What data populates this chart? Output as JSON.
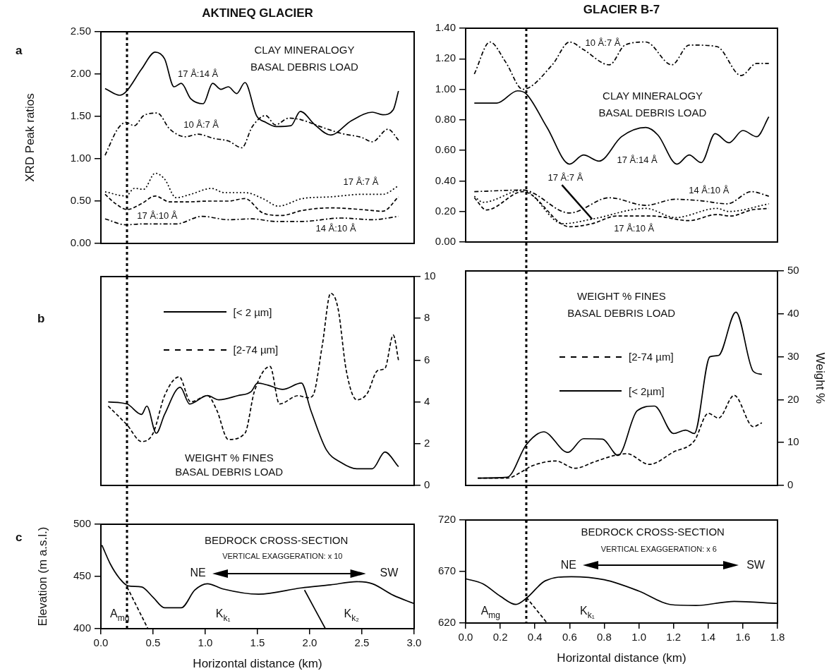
{
  "chart_data": [
    {
      "type": "line",
      "title": "AKTINEQ GLACIER",
      "subtitle": "a",
      "ylabel": "XRD Peak ratios",
      "xlim": [
        0,
        3
      ],
      "ylim": [
        0,
        2.5
      ],
      "yticks": [
        {
          "value": 0,
          "label": "0.00"
        },
        {
          "value": 0.5,
          "label": "0.50"
        },
        {
          "value": 1,
          "label": "1.00"
        },
        {
          "value": 1.5,
          "label": "1.50"
        },
        {
          "value": 2,
          "label": "2.00"
        },
        {
          "value": 2.5,
          "label": "2.50"
        }
      ],
      "tick_labels": "y",
      "ref_lines": [
        {
          "axis": "x",
          "value": 0.25,
          "line_style": "dotted"
        }
      ],
      "annotations": [
        "CLAY MINERALOGY",
        "BASAL DEBRIS LOAD"
      ],
      "series": [
        {
          "name": "17 Å:14 Å",
          "color": "#000000",
          "line_style": "solid",
          "x": [
            0.04,
            0.18,
            0.24,
            0.39,
            0.52,
            0.61,
            0.7,
            0.77,
            0.86,
            0.98,
            1.07,
            1.15,
            1.22,
            1.3,
            1.38,
            1.49,
            1.58,
            1.68,
            1.82,
            1.91,
            2.05,
            2.2,
            2.4,
            2.6,
            2.7,
            2.8,
            2.85
          ],
          "values": [
            1.83,
            1.75,
            1.79,
            2.06,
            2.26,
            2.18,
            1.85,
            1.89,
            1.71,
            1.65,
            1.89,
            1.82,
            1.85,
            1.77,
            1.9,
            1.51,
            1.43,
            1.38,
            1.39,
            1.56,
            1.4,
            1.28,
            1.45,
            1.55,
            1.52,
            1.58,
            1.8
          ]
        },
        {
          "name": "10 Å:7 Å",
          "color": "#000000",
          "line_style": "dashdot",
          "x": [
            0.04,
            0.16,
            0.24,
            0.32,
            0.41,
            0.54,
            0.66,
            0.81,
            0.93,
            1.08,
            1.22,
            1.35,
            1.45,
            1.58,
            1.67,
            1.8,
            1.92,
            2.1,
            2.3,
            2.5,
            2.6,
            2.75,
            2.85
          ],
          "values": [
            1.04,
            1.35,
            1.43,
            1.39,
            1.51,
            1.54,
            1.35,
            1.26,
            1.29,
            1.24,
            1.21,
            1.13,
            1.38,
            1.51,
            1.4,
            1.48,
            1.46,
            1.38,
            1.3,
            1.25,
            1.2,
            1.35,
            1.22
          ]
        },
        {
          "name": "17 Å:7 Å",
          "color": "#000000",
          "line_style": "dotted",
          "x": [
            0.04,
            0.24,
            0.32,
            0.41,
            0.52,
            0.61,
            0.72,
            0.86,
            1.06,
            1.18,
            1.38,
            1.55,
            1.7,
            1.93,
            2.2,
            2.5,
            2.7,
            2.85
          ],
          "values": [
            0.61,
            0.56,
            0.65,
            0.64,
            0.83,
            0.76,
            0.54,
            0.58,
            0.65,
            0.6,
            0.6,
            0.53,
            0.44,
            0.53,
            0.55,
            0.58,
            0.58,
            0.68
          ]
        },
        {
          "name": "17 Å:10 Å",
          "color": "#000000",
          "line_style": "dashed",
          "x": [
            0.04,
            0.14,
            0.25,
            0.39,
            0.52,
            0.66,
            0.81,
            1.03,
            1.22,
            1.38,
            1.55,
            1.73,
            1.93,
            2.2,
            2.5,
            2.7,
            2.85
          ],
          "values": [
            0.58,
            0.47,
            0.4,
            0.47,
            0.56,
            0.49,
            0.49,
            0.5,
            0.5,
            0.53,
            0.36,
            0.33,
            0.39,
            0.42,
            0.4,
            0.38,
            0.55
          ]
        },
        {
          "name": "14 Å:10 Å",
          "color": "#000000",
          "line_style": "dashdot",
          "x": [
            0.04,
            0.24,
            0.39,
            0.72,
            0.97,
            1.22,
            1.45,
            1.67,
            1.93,
            2.3,
            2.6,
            2.85
          ],
          "values": [
            0.29,
            0.22,
            0.23,
            0.23,
            0.32,
            0.28,
            0.29,
            0.26,
            0.26,
            0.3,
            0.28,
            0.32
          ]
        }
      ]
    },
    {
      "type": "line",
      "title": "GLACIER B-7",
      "xlim": [
        0,
        1.8
      ],
      "ylim": [
        0,
        1.4
      ],
      "yticks": [
        {
          "value": 0,
          "label": "0.00"
        },
        {
          "value": 0.2,
          "label": "0.20"
        },
        {
          "value": 0.4,
          "label": "0.40"
        },
        {
          "value": 0.6,
          "label": "0.60"
        },
        {
          "value": 0.8,
          "label": "0.80"
        },
        {
          "value": 1,
          "label": "1.00"
        },
        {
          "value": 1.2,
          "label": "1.20"
        },
        {
          "value": 1.4,
          "label": "1.40"
        }
      ],
      "tick_labels": "y",
      "ref_lines": [
        {
          "axis": "x",
          "value": 0.35,
          "line_style": "dotted"
        }
      ],
      "annotations": [
        "CLAY MINERALOGY",
        "BASAL DEBRIS LOAD"
      ],
      "series": [
        {
          "name": "17 Å:14 Å",
          "color": "#000000",
          "line_style": "solid",
          "x": [
            0.05,
            0.18,
            0.3,
            0.35,
            0.47,
            0.6,
            0.68,
            0.77,
            0.9,
            1.04,
            1.11,
            1.22,
            1.29,
            1.36,
            1.44,
            1.52,
            1.6,
            1.68,
            1.75
          ],
          "values": [
            0.91,
            0.91,
            0.99,
            0.97,
            0.75,
            0.51,
            0.57,
            0.53,
            0.69,
            0.75,
            0.7,
            0.51,
            0.57,
            0.52,
            0.71,
            0.65,
            0.73,
            0.69,
            0.82
          ]
        },
        {
          "name": "10 Å:7 Å",
          "color": "#000000",
          "line_style": "dashdot",
          "x": [
            0.05,
            0.14,
            0.23,
            0.33,
            0.5,
            0.6,
            0.68,
            0.83,
            0.92,
            1.04,
            1.19,
            1.29,
            1.45,
            1.59,
            1.68,
            1.75
          ],
          "values": [
            1.1,
            1.31,
            1.18,
            1.0,
            1.16,
            1.31,
            1.26,
            1.16,
            1.29,
            1.31,
            1.16,
            1.29,
            1.28,
            1.09,
            1.17,
            1.17
          ]
        },
        {
          "name": "17 Å:7 Å",
          "color": "#000000",
          "line_style": "dotted",
          "x": [
            0.05,
            0.1,
            0.33,
            0.56,
            0.73,
            1.04,
            1.21,
            1.45,
            1.52,
            1.75
          ],
          "values": [
            0.3,
            0.26,
            0.34,
            0.12,
            0.15,
            0.22,
            0.16,
            0.22,
            0.2,
            0.25
          ]
        },
        {
          "name": "17 Å:10 Å",
          "color": "#000000",
          "line_style": "dashed",
          "x": [
            0.05,
            0.12,
            0.33,
            0.6,
            0.73,
            0.87,
            1.08,
            1.29,
            1.45,
            1.53,
            1.65,
            1.75
          ],
          "values": [
            0.29,
            0.21,
            0.33,
            0.1,
            0.12,
            0.17,
            0.17,
            0.14,
            0.18,
            0.17,
            0.21,
            0.22
          ]
        },
        {
          "name": "14 Å:10 Å",
          "color": "#000000",
          "line_style": "dashdot",
          "x": [
            0.05,
            0.33,
            0.6,
            0.83,
            1.04,
            1.21,
            1.36,
            1.51,
            1.65,
            1.75
          ],
          "values": [
            0.33,
            0.34,
            0.19,
            0.29,
            0.24,
            0.28,
            0.27,
            0.25,
            0.33,
            0.3
          ]
        }
      ]
    },
    {
      "type": "line",
      "subtitle": "b",
      "xlim": [
        0,
        3
      ],
      "ylim": [
        0,
        10
      ],
      "yticks": [
        0,
        2,
        4,
        6,
        8,
        10
      ],
      "tick_labels": "y",
      "legend": "top left",
      "ref_lines": [
        {
          "axis": "x",
          "value": 0.25,
          "line_style": "dotted"
        }
      ],
      "annotations": [
        "WEIGHT % FINES",
        "BASAL DEBRIS LOAD"
      ],
      "series": [
        {
          "name": "[< 2 µm]",
          "color": "#000000",
          "line_style": "solid",
          "x": [
            0.07,
            0.25,
            0.39,
            0.44,
            0.53,
            0.61,
            0.76,
            0.85,
            1.02,
            1.13,
            1.31,
            1.44,
            1.5,
            1.6,
            1.74,
            1.92,
            2.01,
            2.16,
            2.3,
            2.45,
            2.6,
            2.72,
            2.85
          ],
          "values": [
            4.0,
            3.9,
            3.4,
            3.8,
            2.5,
            3.4,
            4.7,
            3.9,
            4.3,
            4.1,
            4.3,
            4.5,
            4.9,
            4.8,
            4.6,
            4.9,
            3.6,
            1.7,
            1.1,
            0.8,
            0.8,
            1.6,
            0.9
          ]
        },
        {
          "name": "[2-74 µm]",
          "color": "#000000",
          "line_style": "dashed",
          "x": [
            0.07,
            0.25,
            0.39,
            0.5,
            0.61,
            0.75,
            0.86,
            1.02,
            1.11,
            1.22,
            1.38,
            1.47,
            1.62,
            1.71,
            1.89,
            1.98,
            2.03,
            2.12,
            2.2,
            2.27,
            2.35,
            2.45,
            2.55,
            2.65,
            2.72,
            2.8,
            2.85
          ],
          "values": [
            3.8,
            2.9,
            2.1,
            2.5,
            4.3,
            5.2,
            4.0,
            4.3,
            3.6,
            2.2,
            2.5,
            4.5,
            5.7,
            3.9,
            4.3,
            4.2,
            4.3,
            6.7,
            9.2,
            8.5,
            5.5,
            4.1,
            4.4,
            5.5,
            5.6,
            7.2,
            6.0
          ]
        }
      ]
    },
    {
      "type": "line",
      "ylabel": "Weight %",
      "xlim": [
        0,
        1.8
      ],
      "ylim": [
        0,
        50
      ],
      "yticks": [
        0,
        10,
        20,
        30,
        40,
        50
      ],
      "tick_labels": "y",
      "legend": "center",
      "ref_lines": [
        {
          "axis": "x",
          "value": 0.35,
          "line_style": "dotted"
        }
      ],
      "annotations": [
        "WEIGHT % FINES",
        "BASAL DEBRIS LOAD"
      ],
      "series": [
        {
          "name": "[2-74 µm]",
          "color": "#000000",
          "line_style": "dashed",
          "x": [
            0.07,
            0.24,
            0.32,
            0.38,
            0.52,
            0.63,
            0.75,
            0.86,
            0.93,
            1.06,
            1.2,
            1.32,
            1.4,
            1.46,
            1.55,
            1.66,
            1.71
          ],
          "values": [
            1.7,
            1.7,
            3.1,
            4.5,
            5.7,
            4.0,
            5.6,
            7.0,
            7.4,
            4.9,
            7.8,
            10.4,
            16.8,
            15.7,
            21.0,
            13.7,
            14.6
          ]
        },
        {
          "name": "[< 2µm]",
          "color": "#000000",
          "line_style": "solid",
          "x": [
            0.07,
            0.24,
            0.35,
            0.45,
            0.59,
            0.68,
            0.79,
            0.88,
            0.99,
            1.09,
            1.2,
            1.27,
            1.32,
            1.41,
            1.46,
            1.56,
            1.66,
            1.71
          ],
          "values": [
            1.7,
            1.9,
            9.5,
            12.5,
            7.7,
            10.9,
            10.8,
            7.0,
            17.4,
            18.5,
            12.1,
            12.9,
            12.1,
            30.0,
            30.3,
            40.4,
            26.6,
            25.9
          ]
        }
      ]
    },
    {
      "type": "line",
      "subtitle": "c",
      "xlabel": "Horizontal distance (km)",
      "ylabel": "Elevation (m a.s.l.)",
      "xlim": [
        0,
        3
      ],
      "xticks": [
        {
          "value": 0,
          "label": "0.0"
        },
        {
          "value": 0.5,
          "label": "0.5"
        },
        {
          "value": 1,
          "label": "1.0"
        },
        {
          "value": 1.5,
          "label": "1.5"
        },
        {
          "value": 2,
          "label": "2.0"
        },
        {
          "value": 2.5,
          "label": "2.5"
        },
        {
          "value": 3,
          "label": "3.0"
        }
      ],
      "ylim": [
        400,
        500
      ],
      "yticks": [
        400,
        450,
        500
      ],
      "ref_lines": [
        {
          "axis": "x",
          "value": 0.25,
          "line_style": "dotted"
        }
      ],
      "annotations": [
        "BEDROCK CROSS-SECTION",
        "VERTICAL EXAGGERATION: x 10",
        "NE",
        "SW",
        "A$_{mg}$",
        "K$_{k₁}$",
        "K$_{k₂}$"
      ],
      "series": [
        {
          "color": "#000000",
          "line_style": "solid",
          "x": [
            0.01,
            0.09,
            0.18,
            0.26,
            0.39,
            0.5,
            0.61,
            0.77,
            0.9,
            1.02,
            1.17,
            1.51,
            1.92,
            2.2,
            2.45,
            2.6,
            2.8,
            3.0
          ],
          "values": [
            480,
            462,
            448,
            441,
            440,
            430,
            420,
            420,
            437,
            443,
            438,
            433,
            439,
            442,
            445,
            443,
            432,
            424
          ]
        },
        {
          "color": "#000000",
          "line_style": "dashed",
          "x": [
            0.25,
            0.45
          ],
          "values": [
            440,
            400
          ]
        },
        {
          "color": "#000000",
          "line_style": "solid",
          "x": [
            1.95,
            2.15
          ],
          "values": [
            437,
            400
          ]
        }
      ]
    },
    {
      "type": "line",
      "xlabel": "Horizontal distance (km)",
      "xlim": [
        0,
        1.8
      ],
      "xticks": [
        {
          "value": 0,
          "label": "0.0"
        },
        {
          "value": 0.2,
          "label": "0.2"
        },
        {
          "value": 0.4,
          "label": "0.4"
        },
        {
          "value": 0.6,
          "label": "0.6"
        },
        {
          "value": 0.8,
          "label": "0.8"
        },
        {
          "value": 1,
          "label": "1.0"
        },
        {
          "value": 1.2,
          "label": "1.2"
        },
        {
          "value": 1.4,
          "label": "1.4"
        },
        {
          "value": 1.6,
          "label": "1.6"
        },
        {
          "value": 1.8,
          "label": "1.8"
        }
      ],
      "ylim": [
        620,
        720
      ],
      "yticks": [
        620,
        670,
        720
      ],
      "ref_lines": [
        {
          "axis": "x",
          "value": 0.35,
          "line_style": "dotted"
        }
      ],
      "annotations": [
        "BEDROCK CROSS-SECTION",
        "VERTICAL EXAGGERATION: x 6",
        "NE",
        "SW",
        "A$_{mg}$",
        "K$_{k₁}$"
      ],
      "series": [
        {
          "color": "#000000",
          "line_style": "solid",
          "x": [
            0,
            0.1,
            0.2,
            0.29,
            0.35,
            0.46,
            0.61,
            0.8,
            1.0,
            1.18,
            1.33,
            1.55,
            1.8
          ],
          "values": [
            663,
            658,
            646,
            638,
            644,
            661,
            665,
            662,
            651,
            638,
            637,
            641,
            639
          ]
        },
        {
          "color": "#000000",
          "line_style": "dashed",
          "x": [
            0.35,
            0.47
          ],
          "values": [
            645,
            620
          ]
        }
      ]
    }
  ]
}
